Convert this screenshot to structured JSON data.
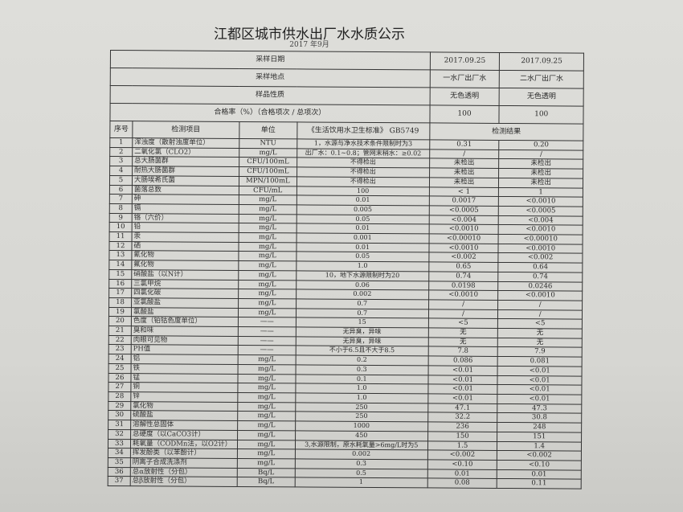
{
  "title": "江都区城市供水出厂水水质公示",
  "subtitle": "2017 年9月",
  "header_rows": [
    {
      "label": "采样日期",
      "v1": "2017.09.25",
      "v2": "2017.09.25"
    },
    {
      "label": "采样地点",
      "v1": "一水厂出厂水",
      "v2": "二水厂出厂水"
    },
    {
      "label": "样品性质",
      "v1": "无色透明",
      "v2": "无色透明"
    },
    {
      "label": "合格率（%）（合格项次 / 总项次）",
      "v1": "100",
      "v2": "100"
    }
  ],
  "columns": {
    "no": "序号",
    "item": "检测项目",
    "unit": "单位",
    "standard": "《生活饮用水卫生标准》 GB5749",
    "results": "检测结果"
  },
  "rows": [
    {
      "no": "1",
      "item": "浑浊度（散射浊度单位）",
      "unit": "NTU",
      "std": "1，水源与净水技术条件限制时为3",
      "r1": "0.31",
      "r2": "0.20"
    },
    {
      "no": "2",
      "item": "二氧化氯（CLO2）",
      "unit": "mg/L",
      "std": "出厂水：0.1~0.8；管网末稍水：≥0.02",
      "r1": "/",
      "r2": "/"
    },
    {
      "no": "3",
      "item": "总大肠菌群",
      "unit": "CFU/100mL",
      "std": "不得检出",
      "r1": "未检出",
      "r2": "未检出"
    },
    {
      "no": "4",
      "item": "耐热大肠菌群",
      "unit": "CFU/100mL",
      "std": "不得检出",
      "r1": "未检出",
      "r2": "未检出"
    },
    {
      "no": "5",
      "item": "大肠埃希氏菌",
      "unit": "MPN/100mL",
      "std": "不得检出",
      "r1": "未检出",
      "r2": "未检出"
    },
    {
      "no": "6",
      "item": "菌落总数",
      "unit": "CFU/mL",
      "std": "100",
      "r1": "< 1",
      "r2": "1"
    },
    {
      "no": "7",
      "item": "砷",
      "unit": "mg/L",
      "std": "0.01",
      "r1": "0.0017",
      "r2": "<0.0010"
    },
    {
      "no": "8",
      "item": "镉",
      "unit": "mg/L",
      "std": "0.005",
      "r1": "<0.0005",
      "r2": "<0.0005"
    },
    {
      "no": "9",
      "item": "铬（六价）",
      "unit": "mg/L",
      "std": "0.05",
      "r1": "<0.004",
      "r2": "<0.004"
    },
    {
      "no": "10",
      "item": "铅",
      "unit": "mg/L",
      "std": "0.01",
      "r1": "<0.0010",
      "r2": "<0.0010"
    },
    {
      "no": "11",
      "item": "汞",
      "unit": "mg/L",
      "std": "0.001",
      "r1": "<0.00010",
      "r2": "<0.00010"
    },
    {
      "no": "12",
      "item": "硒",
      "unit": "mg/L",
      "std": "0.01",
      "r1": "<0.0010",
      "r2": "<0.0010"
    },
    {
      "no": "13",
      "item": "氰化物",
      "unit": "mg/L",
      "std": "0.05",
      "r1": "<0.002",
      "r2": "<0.002"
    },
    {
      "no": "14",
      "item": "氟化物",
      "unit": "mg/L",
      "std": "1.0",
      "r1": "0.65",
      "r2": "0.64"
    },
    {
      "no": "15",
      "item": "硝酸盐（以N计）",
      "unit": "mg/L",
      "std": "10，地下水源限制时为20",
      "r1": "0.74",
      "r2": "0.74"
    },
    {
      "no": "16",
      "item": "三氯甲烷",
      "unit": "mg/L",
      "std": "0.06",
      "r1": "0.0198",
      "r2": "0.0246"
    },
    {
      "no": "17",
      "item": "四氯化碳",
      "unit": "mg/L",
      "std": "0.002",
      "r1": "<0.0010",
      "r2": "<0.0010"
    },
    {
      "no": "18",
      "item": "亚氯酸盐",
      "unit": "mg/L",
      "std": "0.7",
      "r1": "/",
      "r2": "/"
    },
    {
      "no": "19",
      "item": "氯酸盐",
      "unit": "mg/L",
      "std": "0.7",
      "r1": "/",
      "r2": "/"
    },
    {
      "no": "20",
      "item": "色度（铂钴色度单位）",
      "unit": "——",
      "std": "15",
      "r1": "<5",
      "r2": "<5"
    },
    {
      "no": "21",
      "item": "臭和味",
      "unit": "——",
      "std": "无异臭，异味",
      "r1": "无",
      "r2": "无"
    },
    {
      "no": "22",
      "item": "肉眼可见物",
      "unit": "——",
      "std": "无异臭，异味",
      "r1": "无",
      "r2": "无"
    },
    {
      "no": "23",
      "item": "PH值",
      "unit": "——",
      "std": "不小于6.5且不大于8.5",
      "r1": "7.8",
      "r2": "7.9"
    },
    {
      "no": "24",
      "item": "铝",
      "unit": "mg/L",
      "std": "0.2",
      "r1": "0.086",
      "r2": "0.081"
    },
    {
      "no": "25",
      "item": "铁",
      "unit": "mg/L",
      "std": "0.3",
      "r1": "<0.01",
      "r2": "<0.01"
    },
    {
      "no": "26",
      "item": "锰",
      "unit": "mg/L",
      "std": "0.1",
      "r1": "<0.01",
      "r2": "<0.01"
    },
    {
      "no": "27",
      "item": "铜",
      "unit": "mg/L",
      "std": "1.0",
      "r1": "<0.01",
      "r2": "<0.01"
    },
    {
      "no": "28",
      "item": "锌",
      "unit": "mg/L",
      "std": "1.0",
      "r1": "<0.01",
      "r2": "<0.01"
    },
    {
      "no": "29",
      "item": "氯化物",
      "unit": "mg/L",
      "std": "250",
      "r1": "47.1",
      "r2": "47.3"
    },
    {
      "no": "30",
      "item": "硫酸盐",
      "unit": "mg/L",
      "std": "250",
      "r1": "32.2",
      "r2": "30.8"
    },
    {
      "no": "31",
      "item": "溶解性总固体",
      "unit": "mg/L",
      "std": "1000",
      "r1": "236",
      "r2": "248"
    },
    {
      "no": "32",
      "item": "总硬度（以CaCO3计）",
      "unit": "mg/L",
      "std": "450",
      "r1": "150",
      "r2": "151"
    },
    {
      "no": "33",
      "item": "耗氧量（CODMn法，以O2计）",
      "unit": "mg/L",
      "std": "3,水源限制，原水耗氧量>6mg/L时为5",
      "r1": "1.5",
      "r2": "1.4"
    },
    {
      "no": "34",
      "item": "挥发酚类（以苯酚计）",
      "unit": "mg/L",
      "std": "0.002",
      "r1": "<0.002",
      "r2": "<0.002"
    },
    {
      "no": "35",
      "item": "阴离子合成洗涤剂",
      "unit": "mg/L",
      "std": "0.3",
      "r1": "<0.10",
      "r2": "<0.10"
    },
    {
      "no": "36",
      "item": "总α放射性（分包）",
      "unit": "Bq/L",
      "std": "0.5",
      "r1": "0.01",
      "r2": "0.01"
    },
    {
      "no": "37",
      "item": "总β放射性（分包）",
      "unit": "Bq/L",
      "std": "1",
      "r1": "0.08",
      "r2": "0.11"
    }
  ]
}
